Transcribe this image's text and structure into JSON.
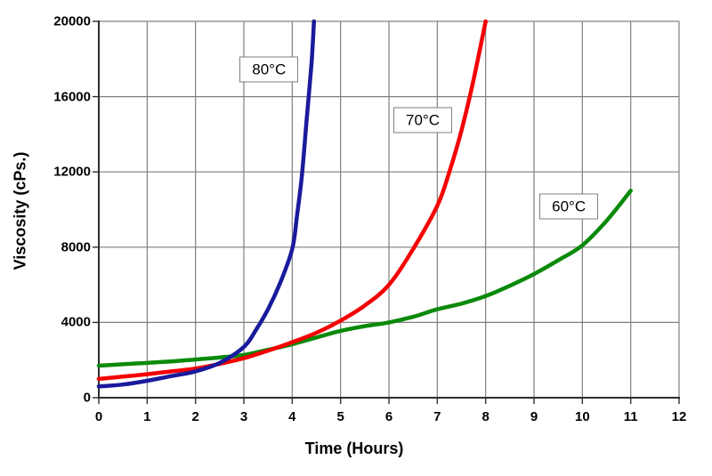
{
  "chart_data": {
    "type": "line",
    "title": "",
    "xlabel": "Time (Hours)",
    "ylabel": "Viscosity (cPs.)",
    "xlim": [
      0,
      12
    ],
    "ylim": [
      0,
      20000
    ],
    "xticks": [
      0,
      1,
      2,
      3,
      4,
      5,
      6,
      7,
      8,
      9,
      10,
      11,
      12
    ],
    "yticks": [
      0,
      4000,
      8000,
      12000,
      16000,
      20000
    ],
    "grid": true,
    "legend_position": "inline-curve-labels",
    "series": [
      {
        "name": "80°C",
        "color": "#1a1a9c",
        "points": [
          [
            0,
            600
          ],
          [
            0.5,
            700
          ],
          [
            1,
            900
          ],
          [
            1.5,
            1150
          ],
          [
            2,
            1400
          ],
          [
            2.5,
            1850
          ],
          [
            3,
            2700
          ],
          [
            3.25,
            3600
          ],
          [
            3.5,
            4700
          ],
          [
            3.75,
            6100
          ],
          [
            4,
            7900
          ],
          [
            4.1,
            9700
          ],
          [
            4.2,
            11800
          ],
          [
            4.3,
            14800
          ],
          [
            4.4,
            17800
          ],
          [
            4.45,
            20000
          ]
        ]
      },
      {
        "name": "70°C",
        "color": "#f40000",
        "points": [
          [
            0,
            1000
          ],
          [
            0.5,
            1120
          ],
          [
            1,
            1250
          ],
          [
            1.5,
            1400
          ],
          [
            2,
            1550
          ],
          [
            2.5,
            1800
          ],
          [
            3,
            2100
          ],
          [
            3.5,
            2500
          ],
          [
            4,
            2950
          ],
          [
            4.5,
            3450
          ],
          [
            5,
            4100
          ],
          [
            5.5,
            4900
          ],
          [
            6,
            6000
          ],
          [
            6.5,
            7900
          ],
          [
            7,
            10200
          ],
          [
            7.25,
            12000
          ],
          [
            7.5,
            14200
          ],
          [
            7.75,
            16900
          ],
          [
            8,
            20000
          ]
        ]
      },
      {
        "name": "60°C",
        "color": "#0a8a0a",
        "points": [
          [
            0,
            1700
          ],
          [
            0.5,
            1780
          ],
          [
            1,
            1850
          ],
          [
            1.5,
            1930
          ],
          [
            2,
            2030
          ],
          [
            2.5,
            2140
          ],
          [
            3,
            2270
          ],
          [
            3.5,
            2550
          ],
          [
            4,
            2840
          ],
          [
            4.5,
            3200
          ],
          [
            5,
            3550
          ],
          [
            5.5,
            3800
          ],
          [
            6,
            4000
          ],
          [
            6.5,
            4300
          ],
          [
            7,
            4700
          ],
          [
            7.5,
            5000
          ],
          [
            8,
            5400
          ],
          [
            8.5,
            5950
          ],
          [
            9,
            6570
          ],
          [
            9.5,
            7300
          ],
          [
            10,
            8100
          ],
          [
            10.5,
            9400
          ],
          [
            11,
            11000
          ]
        ]
      }
    ],
    "annotations": [
      {
        "label": "80°C",
        "x": 3.52,
        "y": 17450
      },
      {
        "label": "70°C",
        "x": 6.7,
        "y": 14750
      },
      {
        "label": "60°C",
        "x": 9.72,
        "y": 10150
      }
    ]
  },
  "style": {
    "background": "#ffffff",
    "grid_color": "#7f7f7f",
    "axis_color": "#2e2e2e",
    "text_color": "#000000",
    "curve_label_border": "#7f7f7f",
    "curve_stroke_width": 4.5
  }
}
